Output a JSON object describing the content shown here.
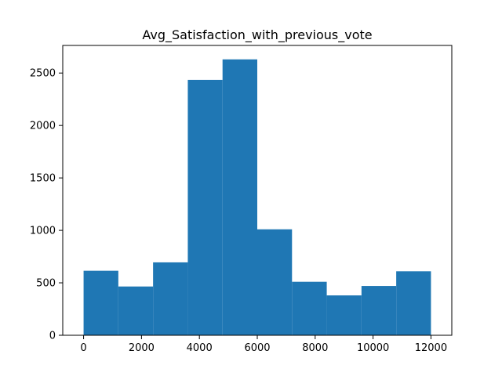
{
  "chart_data": {
    "type": "bar",
    "title": "Avg_Satisfaction_with_previous_vote",
    "xlabel": "",
    "ylabel": "",
    "bins": [
      {
        "x0": 0,
        "x1": 1200,
        "count": 615
      },
      {
        "x0": 1200,
        "x1": 2400,
        "count": 465
      },
      {
        "x0": 2400,
        "x1": 3600,
        "count": 695
      },
      {
        "x0": 3600,
        "x1": 4800,
        "count": 2435
      },
      {
        "x0": 4800,
        "x1": 6000,
        "count": 2630
      },
      {
        "x0": 6000,
        "x1": 7200,
        "count": 1010
      },
      {
        "x0": 7200,
        "x1": 8400,
        "count": 510
      },
      {
        "x0": 8400,
        "x1": 9600,
        "count": 380
      },
      {
        "x0": 9600,
        "x1": 10800,
        "count": 470
      },
      {
        "x0": 10800,
        "x1": 12000,
        "count": 610
      }
    ],
    "xlim": [
      -720,
      12720
    ],
    "ylim": [
      0,
      2763
    ],
    "xticks": [
      0,
      2000,
      4000,
      6000,
      8000,
      10000,
      12000
    ],
    "xtick_labels": [
      "0",
      "2000",
      "4000",
      "6000",
      "8000",
      "10000",
      "12000"
    ],
    "yticks": [
      0,
      500,
      1000,
      1500,
      2000,
      2500
    ],
    "ytick_labels": [
      "0",
      "500",
      "1000",
      "1500",
      "2000",
      "2500"
    ],
    "grid": false,
    "legend": "none",
    "bar_color": "#1f77b4"
  }
}
